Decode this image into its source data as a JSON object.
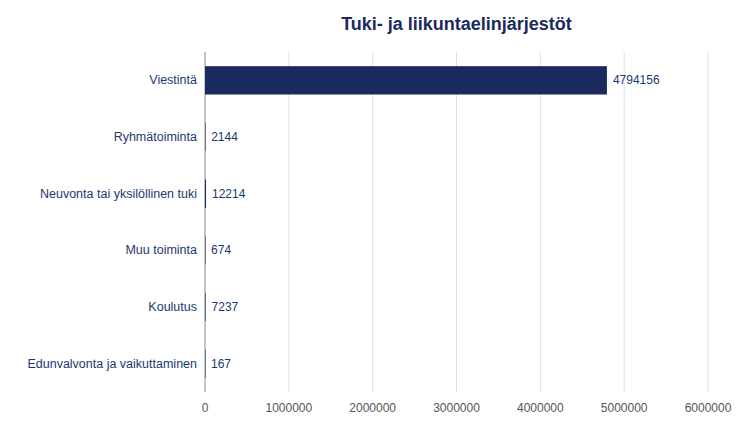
{
  "chart_data": {
    "type": "bar",
    "orientation": "horizontal",
    "title": "Tuki- ja liikuntaelinjärjestöt",
    "categories": [
      "Edunvalvonta ja vaikuttaminen",
      "Koulutus",
      "Muu toiminta",
      "Neuvonta tai yksilöllinen tuki",
      "Ryhmätoiminta",
      "Viestintä"
    ],
    "values": [
      167,
      7237,
      674,
      12214,
      2144,
      4794156
    ],
    "color": "#1a2a5e",
    "xlim": [
      0,
      6000000
    ],
    "xticks": [
      0,
      1000000,
      2000000,
      3000000,
      4000000,
      5000000,
      6000000
    ],
    "grid": true,
    "data_labels": true
  }
}
